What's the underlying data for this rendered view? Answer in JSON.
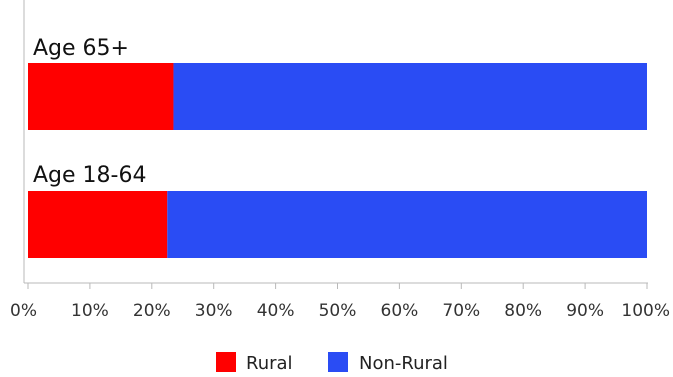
{
  "chart_data": {
    "type": "bar",
    "orientation": "horizontal",
    "stacked": true,
    "percent_stacked": true,
    "categories": [
      "Age 65+",
      "Age 18-64"
    ],
    "series": [
      {
        "name": "Rural",
        "values": [
          23.5,
          22.5
        ],
        "color": "#ff0000"
      },
      {
        "name": "Non-Rural",
        "values": [
          76.5,
          77.5
        ],
        "color": "#2a4cf4"
      }
    ],
    "x_ticks": [
      "0%",
      "10%",
      "20%",
      "30%",
      "40%",
      "50%",
      "60%",
      "70%",
      "80%",
      "90%",
      "100%"
    ],
    "xlim": [
      0,
      100
    ],
    "grid": false,
    "legend_position": "bottom-center"
  }
}
